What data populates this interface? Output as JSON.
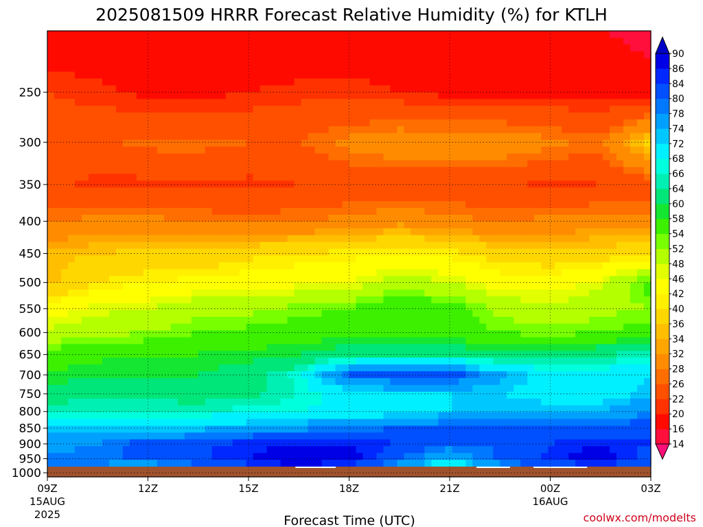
{
  "chart_data": {
    "type": "heatmap",
    "title": "2025081509 HRRR Forecast Relative Humidity (%) for KTLH",
    "xlabel": "Forecast Time (UTC)",
    "ylabel": "",
    "credit": "coolwx.com/modelts",
    "x_ticks": [
      {
        "hour": 0,
        "label": "09Z",
        "sub": "15AUG",
        "sub2": "2025"
      },
      {
        "hour": 3,
        "label": "12Z",
        "sub": "",
        "sub2": ""
      },
      {
        "hour": 6,
        "label": "15Z",
        "sub": "",
        "sub2": ""
      },
      {
        "hour": 9,
        "label": "18Z",
        "sub": "",
        "sub2": ""
      },
      {
        "hour": 12,
        "label": "21Z",
        "sub": "",
        "sub2": ""
      },
      {
        "hour": 15,
        "label": "00Z",
        "sub": "16AUG",
        "sub2": ""
      },
      {
        "hour": 18,
        "label": "03Z",
        "sub": "",
        "sub2": ""
      }
    ],
    "y_ticks": [
      250,
      300,
      350,
      400,
      450,
      500,
      550,
      600,
      650,
      700,
      750,
      800,
      850,
      900,
      950,
      1000
    ],
    "y_range_hpa": [
      200,
      1015
    ],
    "y_scale": "log",
    "colorbar": {
      "levels": [
        14,
        16,
        20,
        22,
        26,
        28,
        32,
        34,
        36,
        40,
        42,
        46,
        48,
        52,
        54,
        58,
        60,
        64,
        66,
        68,
        72,
        74,
        78,
        80,
        84,
        86,
        90
      ],
      "colors": [
        "#ff0f78",
        "#ff0f3c",
        "#ff0a00",
        "#ff3200",
        "#ff5000",
        "#ff6e00",
        "#ff8c00",
        "#ffa500",
        "#ffbe00",
        "#ffd700",
        "#fff000",
        "#ffff00",
        "#e1ff00",
        "#b4ff00",
        "#78ff00",
        "#3cf000",
        "#14e632",
        "#00e678",
        "#00f0b4",
        "#00ffdc",
        "#00f0ff",
        "#00c8ff",
        "#00a0ff",
        "#0078ff",
        "#0050ff",
        "#0028ff",
        "#0000e6",
        "#0000c8"
      ]
    },
    "pressure_levels": [
      200,
      250,
      300,
      350,
      400,
      450,
      500,
      550,
      600,
      650,
      700,
      750,
      800,
      850,
      900,
      950,
      1000
    ],
    "hours": [
      0,
      1.5,
      3,
      4.5,
      6,
      7.5,
      9,
      10.5,
      12,
      13.5,
      15,
      16.5,
      18
    ],
    "rh": [
      [
        17,
        16,
        17,
        17,
        16,
        16,
        17,
        18,
        18,
        17,
        18,
        16,
        15
      ],
      [
        22,
        21,
        19,
        19,
        20,
        21,
        21,
        20,
        19,
        19,
        19,
        19,
        17
      ],
      [
        24,
        25,
        27,
        27,
        26,
        26,
        29,
        31,
        31,
        31,
        29,
        27,
        38
      ],
      [
        23,
        21,
        21,
        22,
        21,
        22,
        23,
        23,
        23,
        23,
        21,
        22,
        24
      ],
      [
        28,
        29,
        29,
        28,
        27,
        28,
        29,
        31,
        29,
        28,
        29,
        30,
        29
      ],
      [
        35,
        36,
        37,
        37,
        39,
        40,
        41,
        42,
        41,
        38,
        37,
        38,
        39
      ],
      [
        35,
        40,
        42,
        43,
        44,
        45,
        46,
        50,
        48,
        44,
        44,
        47,
        56
      ],
      [
        44,
        47,
        48,
        51,
        51,
        53,
        54,
        58,
        56,
        51,
        49,
        51,
        52
      ],
      [
        49,
        51,
        52,
        54,
        55,
        56,
        57,
        57,
        56,
        54,
        53,
        54,
        56
      ],
      [
        56,
        57,
        58,
        58,
        59,
        60,
        62,
        62,
        63,
        61,
        62,
        63,
        66
      ],
      [
        58,
        60,
        60,
        60,
        62,
        67,
        81,
        82,
        82,
        75,
        70,
        70,
        72
      ],
      [
        62,
        63,
        63,
        62,
        63,
        66,
        70,
        71,
        72,
        72,
        70,
        70,
        73
      ],
      [
        66,
        66,
        66,
        66,
        67,
        68,
        69,
        70,
        72,
        74,
        74,
        74,
        78
      ],
      [
        72,
        72,
        72,
        73,
        75,
        77,
        79,
        80,
        82,
        82,
        81,
        81,
        83
      ],
      [
        76,
        78,
        82,
        84,
        85,
        86,
        86,
        84,
        80,
        80,
        84,
        86,
        84
      ],
      [
        79,
        80,
        80,
        83,
        86,
        89,
        88,
        80,
        74,
        81,
        85,
        88,
        82
      ],
      [
        78,
        74,
        72,
        74,
        80,
        82,
        78,
        72,
        60,
        72,
        78,
        80,
        78
      ]
    ],
    "ground": {
      "color": "#a0522d",
      "gaps_hours": [
        [
          7.4,
          8.6
        ],
        [
          12.8,
          13.8
        ],
        [
          14.5,
          16.1
        ]
      ]
    },
    "grid": true
  }
}
